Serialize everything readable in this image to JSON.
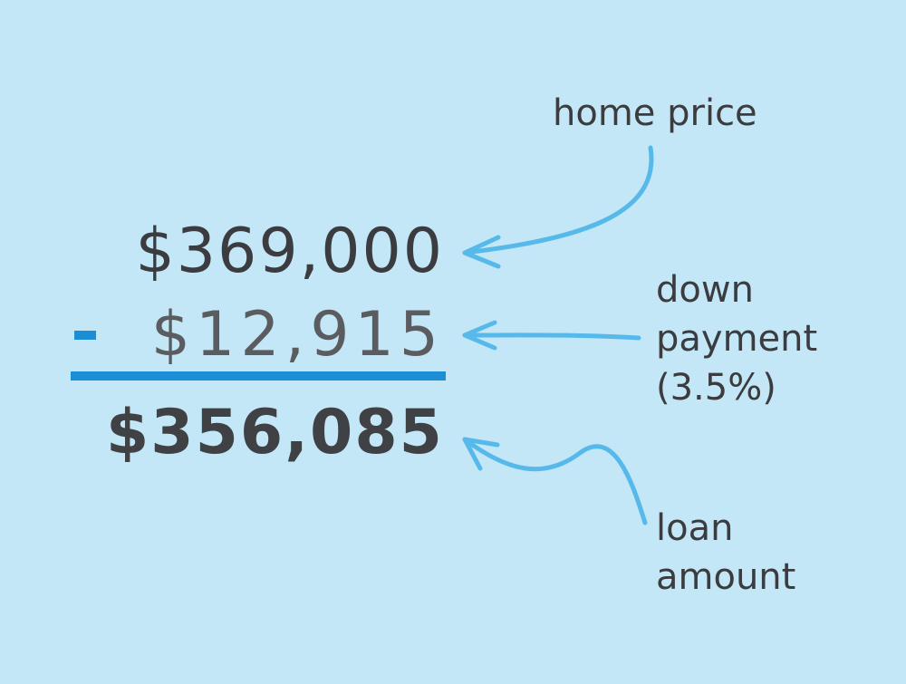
{
  "amounts": {
    "home_price": "$369,000",
    "down_payment": "$12,915",
    "loan_amount": "$356,085"
  },
  "labels": {
    "home_price": "home price",
    "down_payment": [
      "down",
      "payment",
      "(3.5%)"
    ],
    "loan_amount": [
      "loan",
      "amount"
    ]
  },
  "colors": {
    "background": "#c3e7f7",
    "text": "#3b3c3f",
    "accent": "#1b8ed6",
    "arrow": "#57b9ea"
  }
}
